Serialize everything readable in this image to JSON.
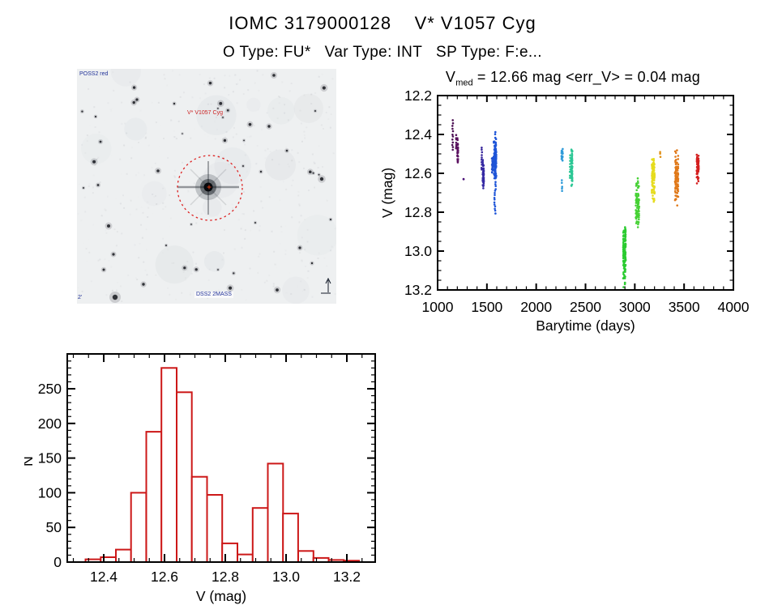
{
  "header": {
    "title": "IOMC 3179000128    V* V1057 Cyg",
    "subtitle": "O Type: FU*   Var Type: INT   SP Type: F:e..."
  },
  "finder": {
    "survey_label": "POSS2 red",
    "target_label": "V* V1057 Cyg",
    "coords_label": "DSS2 2MASS",
    "fov_label": "2'"
  },
  "lightcurve": {
    "stat_title": {
      "v": "V",
      "sub": "med",
      "rest": " = 12.66 mag <err_V> = 0.04 mag"
    }
  },
  "colors": {
    "histogram_red": "#cc1818",
    "annotation_red": "#dd2222",
    "annotation_navy": "#223399",
    "axis_black": "#000000"
  },
  "chart_data": [
    {
      "type": "scatter",
      "title": "V_med = 12.66 mag <err_V> = 0.04 mag",
      "xlabel": "Barytime (days)",
      "ylabel": "V (mag)",
      "xlim": [
        1000,
        4000
      ],
      "ylim": [
        13.2,
        12.2
      ],
      "y_inverted": true,
      "grid": false,
      "xticks": [
        1000,
        1500,
        2000,
        2500,
        3000,
        3500,
        4000
      ],
      "yticks": [
        12.2,
        12.4,
        12.6,
        12.8,
        13.0,
        13.2
      ],
      "x_minor_step": 100,
      "y_minor_step": 0.05,
      "point_clusters": [
        {
          "color": "#4b0e52",
          "t": [
            1148,
            1158
          ],
          "v": [
            12.32,
            12.49
          ],
          "n": 12,
          "mode": "dotted"
        },
        {
          "color": "#550f5a",
          "t": [
            1186,
            1194
          ],
          "v": [
            12.4,
            12.48
          ],
          "n": 7,
          "mode": "dotted"
        },
        {
          "color": "#5a0f5f",
          "t": [
            1200,
            1208
          ],
          "v": [
            12.41,
            12.56
          ],
          "n": 34,
          "mode": "dense",
          "p": 1
        },
        {
          "color": "#4a1076",
          "t": [
            1262,
            1268
          ],
          "v": [
            12.62,
            12.645
          ],
          "n": 2,
          "mode": "dense",
          "p": 1
        },
        {
          "color": "#39289c",
          "t": [
            1444,
            1452
          ],
          "v": [
            12.46,
            12.59
          ],
          "n": 10,
          "mode": "dotted"
        },
        {
          "color": "#372ba4",
          "t": [
            1456,
            1470
          ],
          "v": [
            12.51,
            12.68
          ],
          "n": 65,
          "mode": "dense",
          "p": 0.8
        },
        {
          "color": "#2050cf",
          "t": [
            1550,
            1560
          ],
          "v": [
            12.5,
            12.63
          ],
          "n": 22,
          "mode": "dense",
          "p": 1
        },
        {
          "color": "#1e55d8",
          "t": [
            1568,
            1596
          ],
          "v": [
            12.42,
            12.64
          ],
          "n": 150,
          "mode": "dense",
          "p": 1
        },
        {
          "color": "#1e55d8",
          "t": [
            1574,
            1592
          ],
          "v": [
            12.64,
            12.81
          ],
          "n": 15,
          "mode": "dotted"
        },
        {
          "color": "#1e55d8",
          "t": [
            1578,
            1590
          ],
          "v": [
            12.38,
            12.42
          ],
          "n": 3,
          "mode": "dotted"
        },
        {
          "color": "#2f9bd9",
          "t": [
            2254,
            2272
          ],
          "v": [
            12.46,
            12.54
          ],
          "n": 20,
          "mode": "dense",
          "p": 1,
          "cols": 2
        },
        {
          "color": "#2f9bd9",
          "t": [
            2258,
            2264
          ],
          "v": [
            12.63,
            12.7
          ],
          "n": 5,
          "mode": "dotted"
        },
        {
          "color": "#2cc795",
          "t": [
            2340,
            2348
          ],
          "v": [
            12.5,
            12.63
          ],
          "n": 9,
          "mode": "dotted"
        },
        {
          "color": "#2cc795",
          "t": [
            2354,
            2368
          ],
          "v": [
            12.46,
            12.67
          ],
          "n": 70,
          "mode": "dense",
          "p": 0.85
        },
        {
          "color": "#2bcb30",
          "t": [
            2878,
            2912
          ],
          "v": [
            12.86,
            13.2
          ],
          "n": 130,
          "mode": "dense",
          "p": 1.2,
          "cols": 2
        },
        {
          "color": "#46d135",
          "t": [
            3004,
            3050
          ],
          "v": [
            12.59,
            12.89
          ],
          "n": 90,
          "mode": "dense",
          "p": 0.75,
          "cols": 2
        },
        {
          "color": "#e6dc1f",
          "t": [
            3168,
            3206
          ],
          "v": [
            12.52,
            12.76
          ],
          "n": 110,
          "mode": "dense",
          "p": 1.25,
          "cols": 2
        },
        {
          "color": "#e09018",
          "t": [
            3256,
            3262
          ],
          "v": [
            12.48,
            12.52
          ],
          "n": 3,
          "mode": "dotted"
        },
        {
          "color": "#e07818",
          "t": [
            3402,
            3446
          ],
          "v": [
            12.47,
            12.77
          ],
          "n": 100,
          "mode": "dense",
          "p": 1,
          "cols": 2
        },
        {
          "color": "#d41f1f",
          "t": [
            3624,
            3652
          ],
          "v": [
            12.49,
            12.66
          ],
          "n": 60,
          "mode": "dense",
          "p": 1,
          "cols": 2
        }
      ]
    },
    {
      "type": "histogram",
      "xlabel": "V (mag)",
      "ylabel": "N",
      "bar_color": "#cc1818",
      "bin_start": 12.34,
      "bin_width": 0.05,
      "counts": [
        4,
        7,
        18,
        100,
        188,
        280,
        245,
        123,
        97,
        27,
        11,
        78,
        142,
        70,
        16,
        6,
        3,
        2
      ],
      "xticks": [
        12.4,
        12.6,
        12.8,
        13.0,
        13.2
      ],
      "yticks": [
        0,
        50,
        100,
        150,
        200,
        250
      ],
      "x_minor_step": 0.05,
      "y_minor_step": 10,
      "xlim": [
        12.28,
        13.293
      ],
      "ylim": [
        0,
        300
      ]
    }
  ]
}
